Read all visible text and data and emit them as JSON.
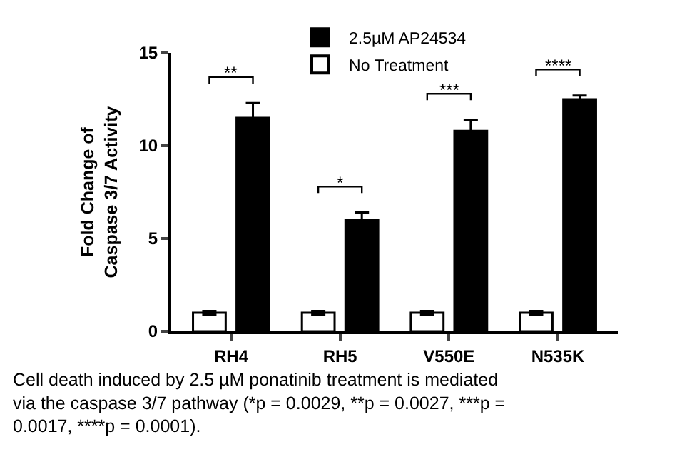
{
  "chart_data": {
    "type": "bar",
    "ylabel": "Fold Change of\nCaspase 3/7 Activity",
    "categories": [
      "RH4",
      "RH5",
      "V550E",
      "N535K"
    ],
    "series": [
      {
        "name": "No Treatment",
        "color": "#ffffff",
        "values": [
          1.0,
          1.0,
          1.0,
          1.0
        ],
        "errors": [
          0.1,
          0.1,
          0.1,
          0.1
        ]
      },
      {
        "name": "2.5µM AP24534",
        "color": "#000000",
        "values": [
          11.5,
          6.0,
          10.8,
          12.5
        ],
        "errors": [
          0.8,
          0.4,
          0.6,
          0.2
        ]
      }
    ],
    "ylim": [
      0,
      15
    ],
    "yticks": [
      0,
      5,
      10,
      15
    ],
    "legend": "top",
    "annotations": [
      "**",
      "*",
      "***",
      "****",
      "Cell death induced by 2.5 µM ponatinib treatment is mediated via the caspase 3/7 pathway (*p = 0.0029, **p = 0.0027, ***p = 0.0017, ****p = 0.0001)."
    ]
  }
}
